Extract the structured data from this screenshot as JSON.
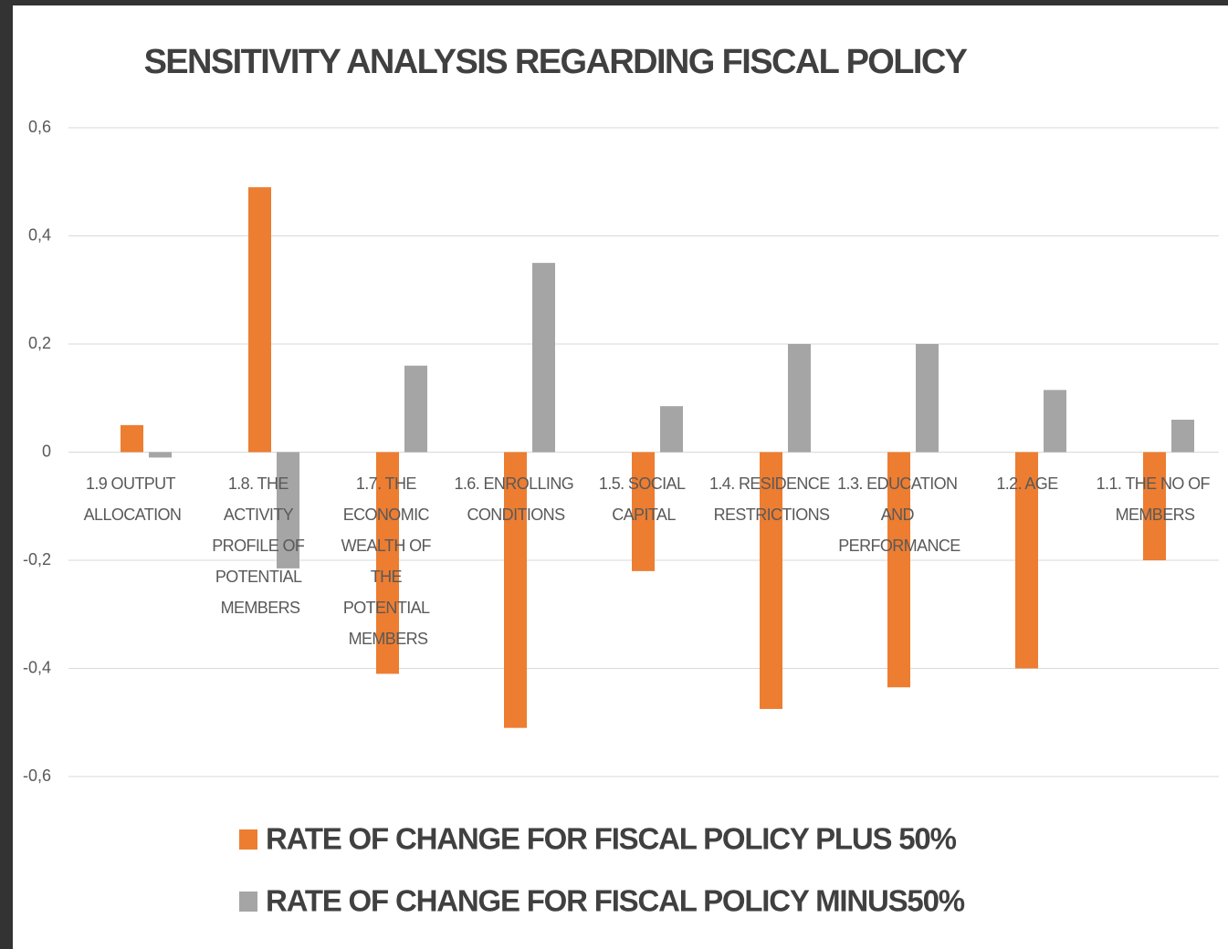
{
  "chart_data": {
    "type": "bar",
    "title": "SENSITIVITY ANALYSIS REGARDING FISCAL POLICY",
    "categories": [
      "1.9 OUTPUT ALLOCATION",
      "1.8. THE ACTIVITY PROFILE OF POTENTIAL MEMBERS",
      "1.7. THE ECONOMIC WEALTH OF THE POTENTIAL MEMBERS",
      "1.6. ENROLLING CONDITIONS",
      "1.5. SOCIAL CAPITAL",
      "1.4. RESIDENCE RESTRICTIONS",
      "1.3. EDUCATION AND PERFORMANCE",
      "1.2. AGE",
      "1.1. THE NO OF MEMBERS"
    ],
    "series": [
      {
        "name": "RATE OF CHANGE FOR FISCAL POLICY  PLUS 50%",
        "color": "#ed7d31",
        "values": [
          0.05,
          0.49,
          -0.41,
          -0.51,
          -0.22,
          -0.475,
          -0.435,
          -0.4,
          -0.2
        ]
      },
      {
        "name": "RATE OF CHANGE FOR FISCAL POLICY  MINUS50%",
        "color": "#a5a5a5",
        "values": [
          -0.01,
          -0.215,
          0.16,
          0.35,
          0.085,
          0.2,
          0.2,
          0.115,
          0.06
        ]
      }
    ],
    "ylim": [
      -0.6,
      0.6
    ],
    "yticks": [
      {
        "value": -0.6,
        "label": "-0,6"
      },
      {
        "value": -0.4,
        "label": "-0,4"
      },
      {
        "value": -0.2,
        "label": "-0,2"
      },
      0,
      {
        "value": 0.2,
        "label": "0,2"
      },
      {
        "value": 0.4,
        "label": "0,4"
      },
      {
        "value": 0.6,
        "label": "0,6"
      }
    ],
    "grid": true,
    "legend": "bottom"
  }
}
